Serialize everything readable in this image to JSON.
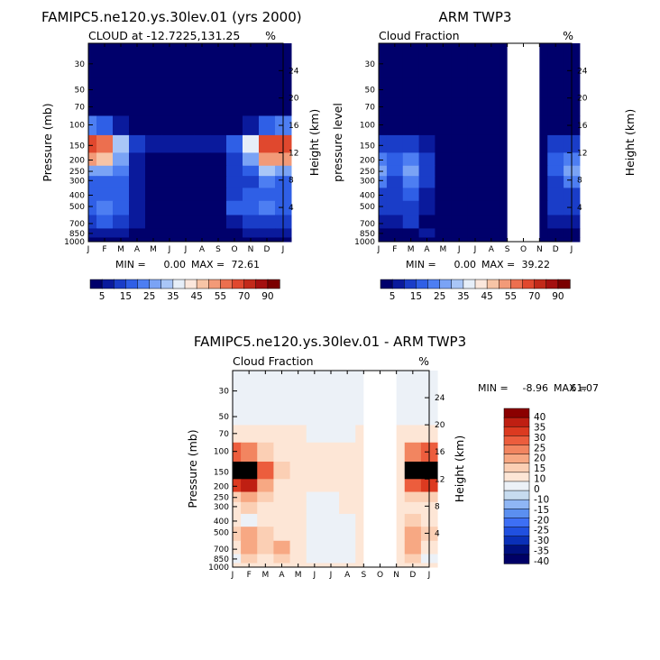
{
  "colors": {
    "pos": [
      "#f9ecd9",
      "#fddbc7",
      "#f9b99a",
      "#f4a582",
      "#f4825d",
      "#ee5a3c",
      "#e03a1f",
      "#c81d12",
      "#a50f15",
      "#7a0000"
    ],
    "neg": [
      "#f7f7f7",
      "#deebf7",
      "#c6dbef",
      "#9ecae1",
      "#6baed6",
      "#4292f0",
      "#2171f0",
      "#1450d8",
      "#0a30b8",
      "#00209a",
      "#001080",
      "#000066"
    ],
    "diff": [
      "#000066",
      "#001080",
      "#0a30b8",
      "#2050e0",
      "#3d6ff5",
      "#5b8ff0",
      "#8fb6f5",
      "#c6dbef",
      "#ecf1f7",
      "#fde6d6",
      "#fbcfb4",
      "#f7a883",
      "#f28560",
      "#ec5d3d",
      "#dc3a20",
      "#bf1f12",
      "#8b0000"
    ]
  },
  "chart_data": [
    {
      "type": "heatmap",
      "title": "FAMIPC5.ne120.ys.30lev.01 (yrs 2000)",
      "subtitle_left": "CLOUD at -12.7225,131.25",
      "subtitle_right": "%",
      "xlabel": "",
      "ylabel": "Pressure (mb)",
      "ylabel_right": "Height (km)",
      "x_ticks": [
        "J",
        "F",
        "M",
        "A",
        "M",
        "J",
        "J",
        "A",
        "S",
        "O",
        "N",
        "D",
        "J"
      ],
      "pressure_ticks": [
        "30",
        "50",
        "70",
        "100",
        "150",
        "200",
        "250",
        "300",
        "400",
        "500",
        "700",
        "850",
        "1000"
      ],
      "height_ticks": [
        "24",
        "20",
        "16",
        "12",
        "8",
        "4"
      ],
      "min_label": "MIN =",
      "min_value": "0.00",
      "max_label": "MAX =",
      "max_value": "72.61",
      "levels": [
        5,
        10,
        15,
        20,
        25,
        30,
        35,
        40,
        45,
        50,
        55,
        60,
        70,
        80,
        90
      ],
      "colorbar_labels": [
        "5",
        "15",
        "25",
        "35",
        "45",
        "55",
        "70",
        "90"
      ],
      "grid_values": [
        [
          0,
          0,
          0,
          0,
          0,
          0,
          0,
          0,
          0,
          0,
          0,
          0,
          0
        ],
        [
          0,
          0,
          0,
          0,
          0,
          0,
          0,
          0,
          0,
          0,
          0,
          0,
          0
        ],
        [
          2,
          2,
          1,
          0,
          0,
          0,
          0,
          0,
          0,
          0,
          1,
          2,
          2
        ],
        [
          20,
          16,
          8,
          3,
          1,
          0,
          0,
          0,
          0,
          1,
          6,
          17,
          20
        ],
        [
          62,
          58,
          30,
          10,
          6,
          5,
          5,
          5,
          5,
          15,
          38,
          65,
          62
        ],
        [
          50,
          48,
          28,
          8,
          3,
          2,
          2,
          2,
          3,
          12,
          28,
          52,
          50
        ],
        [
          26,
          26,
          22,
          8,
          1,
          1,
          1,
          1,
          2,
          10,
          18,
          30,
          26
        ],
        [
          18,
          16,
          16,
          6,
          1,
          1,
          1,
          1,
          2,
          10,
          14,
          20,
          18
        ],
        [
          16,
          16,
          16,
          6,
          1,
          1,
          1,
          1,
          2,
          14,
          16,
          18,
          16
        ],
        [
          18,
          20,
          18,
          8,
          1,
          1,
          1,
          1,
          2,
          18,
          16,
          20,
          18
        ],
        [
          12,
          16,
          14,
          6,
          1,
          1,
          1,
          1,
          2,
          8,
          10,
          14,
          12
        ],
        [
          6,
          8,
          8,
          4,
          1,
          0,
          0,
          0,
          1,
          4,
          6,
          8,
          6
        ],
        [
          2,
          3,
          3,
          1,
          0,
          0,
          0,
          0,
          0,
          1,
          2,
          2,
          2
        ]
      ]
    },
    {
      "type": "heatmap",
      "title": "ARM TWP3",
      "subtitle_left": "Cloud Fraction",
      "subtitle_right": "%",
      "xlabel": "",
      "ylabel": "pressure level",
      "ylabel_right": "Height (km)",
      "x_ticks": [
        "J",
        "F",
        "M",
        "A",
        "M",
        "J",
        "J",
        "A",
        "S",
        "O",
        "N",
        "D",
        "J"
      ],
      "pressure_ticks": [
        "30",
        "50",
        "70",
        "100",
        "150",
        "200",
        "250",
        "300",
        "400",
        "500",
        "700",
        "850",
        "1000"
      ],
      "height_ticks": [
        "24",
        "20",
        "16",
        "12",
        "8",
        "4"
      ],
      "missing_months": [
        "S",
        "O",
        "N"
      ],
      "min_label": "MIN =",
      "min_value": "0.00",
      "max_label": "MAX =",
      "max_value": "39.22",
      "levels": [
        5,
        10,
        15,
        20,
        25,
        30,
        35,
        40,
        45,
        50,
        55,
        60,
        70,
        80,
        90
      ],
      "colorbar_labels": [
        "5",
        "15",
        "25",
        "35",
        "45",
        "55",
        "70",
        "90"
      ],
      "grid_values": [
        [
          0,
          0,
          0,
          0,
          0,
          0,
          0,
          0,
          0,
          0,
          0,
          0,
          0
        ],
        [
          0,
          0,
          0,
          0,
          0,
          0,
          0,
          0,
          0,
          0,
          0,
          0,
          0
        ],
        [
          0,
          0,
          0,
          0,
          0,
          0,
          0,
          0,
          0,
          0,
          0,
          0,
          0
        ],
        [
          2,
          1,
          2,
          1,
          0,
          0,
          0,
          0,
          0,
          0,
          0,
          1,
          2
        ],
        [
          14,
          10,
          12,
          6,
          2,
          1,
          1,
          1,
          1,
          0,
          0,
          10,
          14
        ],
        [
          24,
          16,
          22,
          10,
          3,
          1,
          1,
          1,
          1,
          0,
          0,
          16,
          24
        ],
        [
          28,
          16,
          26,
          12,
          3,
          1,
          1,
          1,
          1,
          0,
          0,
          18,
          28
        ],
        [
          20,
          14,
          20,
          10,
          3,
          1,
          1,
          1,
          1,
          0,
          0,
          14,
          20
        ],
        [
          14,
          12,
          16,
          8,
          2,
          1,
          1,
          1,
          1,
          0,
          0,
          12,
          14
        ],
        [
          10,
          10,
          14,
          6,
          2,
          1,
          1,
          1,
          1,
          0,
          0,
          10,
          10
        ],
        [
          6,
          8,
          10,
          4,
          1,
          0,
          0,
          0,
          0,
          0,
          0,
          6,
          6
        ],
        [
          3,
          4,
          4,
          5,
          1,
          0,
          0,
          0,
          0,
          0,
          0,
          3,
          3
        ],
        [
          1,
          2,
          2,
          1,
          0,
          0,
          0,
          0,
          0,
          0,
          0,
          1,
          1
        ]
      ]
    },
    {
      "type": "heatmap",
      "title": "FAMIPC5.ne120.ys.30lev.01 - ARM TWP3",
      "subtitle_left": "Cloud Fraction",
      "subtitle_right": "%",
      "xlabel": "",
      "ylabel": "Pressure (mb)",
      "ylabel_right": "Height (km)",
      "x_ticks": [
        "J",
        "F",
        "M",
        "A",
        "M",
        "J",
        "J",
        "A",
        "S",
        "O",
        "N",
        "D",
        "J"
      ],
      "pressure_ticks": [
        "30",
        "50",
        "70",
        "100",
        "150",
        "200",
        "250",
        "300",
        "400",
        "500",
        "700",
        "850",
        "1000"
      ],
      "height_ticks": [
        "24",
        "20",
        "16",
        "12",
        "8",
        "4"
      ],
      "missing_months": [
        "S",
        "O",
        "N"
      ],
      "min_label": "MIN =",
      "min_value": "-8.96",
      "max_label": "MAX =",
      "max_value": "61.07",
      "levels": [
        -40,
        -35,
        -30,
        -25,
        -20,
        -15,
        -10,
        -5,
        0,
        5,
        10,
        15,
        20,
        25,
        30,
        35,
        40
      ],
      "colorbar_labels": [
        "40",
        "35",
        "30",
        "25",
        "20",
        "15",
        "10",
        "0",
        "-10",
        "-15",
        "-20",
        "-25",
        "-30",
        "-35",
        "-40"
      ],
      "grid_values": [
        [
          -3,
          -3,
          -3,
          -3,
          -3,
          -3,
          -3,
          -3,
          -3,
          -3,
          -3,
          -3,
          -3
        ],
        [
          -3,
          -3,
          -3,
          -3,
          -3,
          -3,
          -3,
          -3,
          -3,
          -3,
          -3,
          -3,
          -3
        ],
        [
          2,
          2,
          2,
          2,
          2,
          -2,
          -2,
          -2,
          2,
          2,
          2,
          2,
          2
        ],
        [
          20,
          18,
          8,
          4,
          2,
          2,
          2,
          2,
          2,
          2,
          2,
          16,
          20
        ],
        [
          55,
          50,
          20,
          8,
          4,
          3,
          2,
          2,
          3,
          3,
          3,
          50,
          55
        ],
        [
          26,
          30,
          10,
          4,
          2,
          1,
          1,
          1,
          1,
          1,
          1,
          20,
          26
        ],
        [
          6,
          10,
          8,
          2,
          1,
          -1,
          -1,
          1,
          1,
          1,
          1,
          8,
          6
        ],
        [
          2,
          6,
          4,
          2,
          1,
          -2,
          -2,
          1,
          1,
          1,
          1,
          4,
          2
        ],
        [
          2,
          -2,
          4,
          2,
          1,
          -2,
          -3,
          -2,
          1,
          1,
          1,
          6,
          2
        ],
        [
          8,
          12,
          6,
          2,
          1,
          -2,
          -3,
          -2,
          1,
          1,
          1,
          10,
          8
        ],
        [
          4,
          14,
          6,
          14,
          4,
          -2,
          -3,
          -2,
          1,
          1,
          1,
          14,
          4
        ],
        [
          -2,
          6,
          2,
          8,
          2,
          -2,
          -2,
          -2,
          1,
          1,
          1,
          6,
          -2
        ],
        [
          1,
          2,
          1,
          1,
          1,
          1,
          1,
          1,
          1,
          1,
          1,
          1,
          1
        ]
      ]
    }
  ]
}
